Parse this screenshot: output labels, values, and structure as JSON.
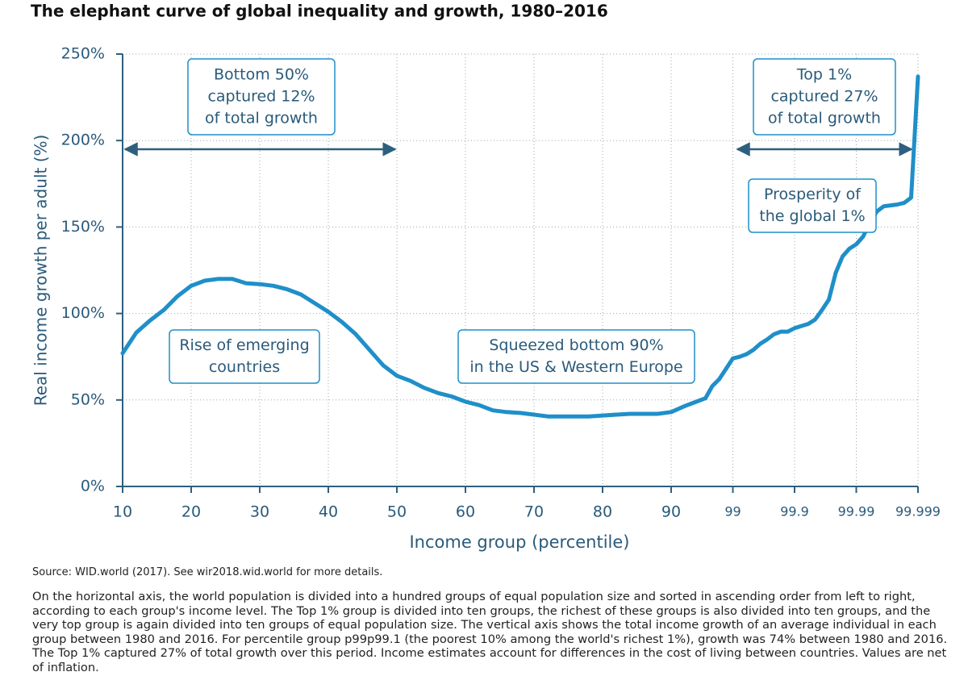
{
  "chart_data": {
    "type": "line",
    "title": "The elephant curve of global inequality and growth, 1980–2016",
    "x_label": "Income group (percentile)",
    "y_label": "Real income growth per adult (%)",
    "x": [
      10,
      12,
      14,
      16,
      18,
      20,
      22,
      24,
      26,
      28,
      30,
      32,
      34,
      36,
      38,
      40,
      42,
      44,
      46,
      48,
      50,
      52,
      54,
      56,
      58,
      60,
      62,
      64,
      66,
      68,
      70,
      72,
      74,
      76,
      78,
      80,
      82,
      84,
      86,
      88,
      90,
      92,
      94,
      95,
      96,
      97,
      98,
      99,
      99.1,
      99.2,
      99.3,
      99.4,
      99.5,
      99.6,
      99.7,
      99.8,
      99.9,
      99.92,
      99.93,
      99.94,
      99.95,
      99.96,
      99.97,
      99.98,
      99.99,
      99.991,
      99.992,
      99.993,
      99.994,
      99.995,
      99.996,
      99.997,
      99.998,
      99.999
    ],
    "values": [
      77,
      89,
      96,
      102,
      110,
      116,
      119,
      120,
      120,
      117.5,
      117,
      116,
      114,
      111,
      106,
      101,
      95,
      88,
      79,
      70,
      64,
      61,
      57,
      54,
      52,
      49,
      47,
      44,
      43,
      42.5,
      41.5,
      40.5,
      40.5,
      40.5,
      40.5,
      41,
      41.5,
      42,
      42,
      42,
      43,
      46.5,
      49.5,
      51,
      58,
      62,
      68,
      74,
      75,
      76.5,
      79,
      82.5,
      85,
      88,
      89.5,
      89.5,
      91.5,
      94,
      96.5,
      102,
      108,
      123.5,
      133,
      137.5,
      140,
      144.5,
      152.5,
      159,
      162,
      162.5,
      163,
      164,
      167,
      237
    ],
    "color": "#1f8fc9",
    "xticks": [
      10,
      20,
      30,
      40,
      50,
      60,
      70,
      80,
      90,
      99,
      99.9,
      99.99,
      99.999
    ],
    "ylim": [
      0,
      250
    ],
    "yticks": [
      {
        "value": 0,
        "label": "0%"
      },
      {
        "value": 50,
        "label": "50%"
      },
      {
        "value": 100,
        "label": "100%"
      },
      {
        "value": 150,
        "label": "150%"
      },
      {
        "value": 200,
        "label": "200%"
      },
      {
        "value": 250,
        "label": "250%"
      }
    ],
    "grid": true,
    "annotations": [
      {
        "lines": [
          "Bottom 50%",
          "captured 12%",
          "of total growth"
        ]
      },
      {
        "lines": [
          "Top 1%",
          "captured 27%",
          "of total growth"
        ]
      },
      {
        "lines": [
          "Prosperity of",
          "the global 1%"
        ]
      },
      {
        "lines": [
          "Rise of emerging",
          "countries"
        ]
      },
      {
        "lines": [
          "Squeezed bottom 90%",
          "in the US & Western Europe"
        ]
      }
    ],
    "source": "Source: WID.world (2017). See wir2018.wid.world for more details.",
    "note": "On the horizontal axis, the world population is divided into a hundred groups of equal population size and sorted in ascending order from left to right, according to each group's income level. The Top 1% group is divided into ten groups, the richest of these groups is also divided into ten groups, and the very top group is again divided into ten groups of equal population size. The vertical axis shows the total income growth of an average individual in each group between 1980 and 2016. For percentile group p99p99.1 (the poorest 10% among the world's richest 1%), growth was 74% between 1980 and 2016. The Top 1% captured 27% of total growth over this period. Income estimates account for differences in the cost of living between countries. Values are net of inflation."
  }
}
